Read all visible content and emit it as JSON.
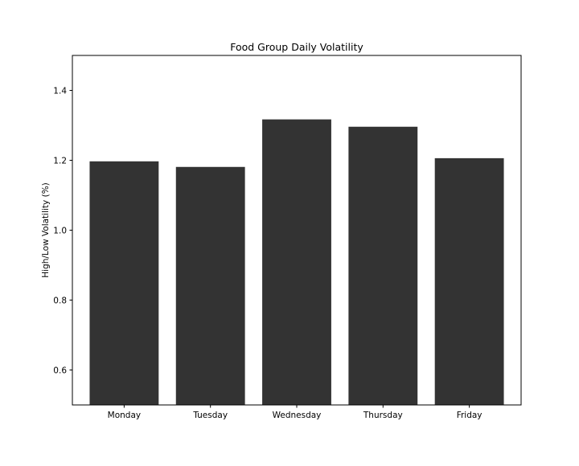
{
  "chart_data": {
    "type": "bar",
    "title": "Food Group Daily Volatility",
    "xlabel": "",
    "ylabel": "High/Low Volatility (%)",
    "categories": [
      "Monday",
      "Tuesday",
      "Wednesday",
      "Thursday",
      "Friday"
    ],
    "values": [
      1.197,
      1.181,
      1.317,
      1.296,
      1.206
    ],
    "ylim": [
      0.5,
      1.5
    ],
    "yticks": [
      "0.6",
      "0.8",
      "1.0",
      "1.2",
      "1.4"
    ],
    "grid": false,
    "bar_color": "#333333"
  }
}
